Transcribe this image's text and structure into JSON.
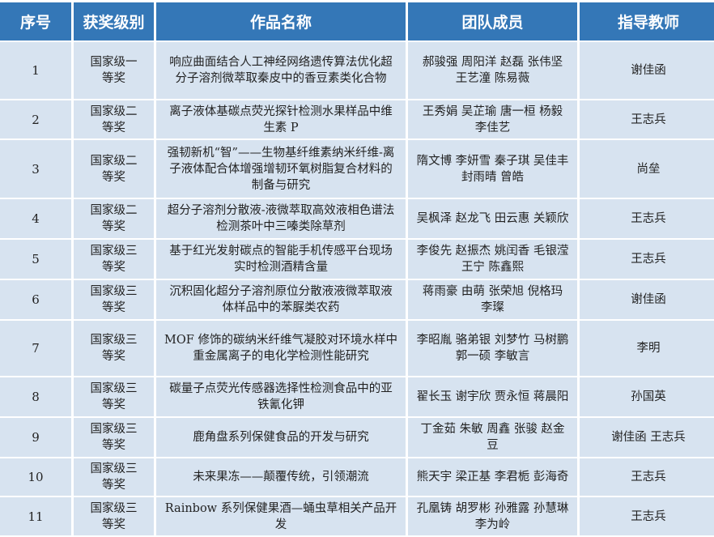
{
  "headers": [
    "序号",
    "获奖级别",
    "作品名称",
    "团队成员",
    "指导教师"
  ],
  "rows": [
    {
      "no": "1",
      "level": "国家级一等奖",
      "title": "响应曲面结合人工神经网络遗传算法优化超分子溶剂微萃取秦皮中的香豆素类化合物",
      "members": "郝骏强 周阳洋 赵磊 张伟坚 王艺潼 陈易薇",
      "advisor": "谢佳函"
    },
    {
      "no": "2",
      "level": "国家级二等奖",
      "title": "离子液体基碳点荧光探针检测水果样品中维生素 P",
      "members": "王秀娟 吴芷瑜 唐一桓 杨毅 李佳艺",
      "advisor": "王志兵"
    },
    {
      "no": "3",
      "level": "国家级二等奖",
      "title": "强韧新机“智”——生物基纤维素纳米纤维-离子液体配合体增强增韧环氧树脂复合材料的制备与研究",
      "members": "隋文博 李妍雪 秦子琪 吴佳丰 封雨晴 曾皓",
      "advisor": "尚垒"
    },
    {
      "no": "4",
      "level": "国家级二等奖",
      "title": "超分子溶剂分散液-液微萃取高效液相色谱法检测茶叶中三嗪类除草剂",
      "members": "吴枫泽 赵龙飞 田云惠 关颖欣",
      "advisor": "王志兵"
    },
    {
      "no": "5",
      "level": "国家级三等奖",
      "title": "基于红光发射碳点的智能手机传感平台现场实时检测酒精含量",
      "members": "李俊先 赵振杰 姚闰香 毛银滢 王宁 陈鑫熙",
      "advisor": "王志兵"
    },
    {
      "no": "6",
      "level": "国家级三等奖",
      "title": "沉积固化超分子溶剂原位分散液液微萃取液体样品中的苯脲类农药",
      "members": "蒋雨豪 由萌 张荣旭 倪格玛 李璨",
      "advisor": "谢佳函"
    },
    {
      "no": "7",
      "level": "国家级三等奖",
      "title": "MOF 修饰的碳纳米纤维气凝胶对环境水样中重金属离子的电化学检测性能研究",
      "members": "李昭胤 骆弟银 刘梦竹 马树鹏 郭一硕 李敏言",
      "advisor": "李明"
    },
    {
      "no": "8",
      "level": "国家级三等奖",
      "title": "碳量子点荧光传感器选择性检测食品中的亚铁氰化钾",
      "members": "翟长玉 谢宇欣 贾永恒 蒋晨阳",
      "advisor": "孙国英"
    },
    {
      "no": "9",
      "level": "国家级三等奖",
      "title": "鹿角盘系列保健食品的开发与研究",
      "members": "丁金茹 朱敏 周鑫 张骏 赵金豆",
      "advisor": "谢佳函 王志兵"
    },
    {
      "no": "10",
      "level": "国家级三等奖",
      "title": "未来果冻——颠覆传统，引领潮流",
      "members": "熊天宇 梁正基 李君栀 彭海奇",
      "advisor": "王志兵"
    },
    {
      "no": "11",
      "level": "国家级三等奖",
      "title": "Rainbow 系列保健果酒—蛹虫草相关产品开发",
      "members": "孔凰铸 胡罗彬 孙雅露 孙慧琳 李为岭",
      "advisor": "王志兵"
    }
  ],
  "colors": {
    "header_bg": "#3477b7",
    "row_bg": "#d7e3f0"
  }
}
